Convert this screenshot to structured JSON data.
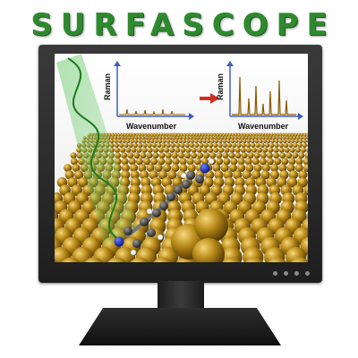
{
  "title": "SURFASCOPE",
  "spectra": {
    "left": {
      "xlabel": "Wavenumber",
      "ylabel": "Raman"
    },
    "right": {
      "xlabel": "Wavenumber",
      "ylabel": "Raman"
    }
  },
  "colors": {
    "title": "#2f8a2f",
    "gold": "#b8860b",
    "laser": "#3aa33a",
    "arrow": "#d62b1e",
    "axis": "#3f5fbf",
    "spectrum": "#8a5a00"
  },
  "icons": [
    "laser-wave-icon",
    "arrow-right-icon",
    "molecule-icon"
  ]
}
